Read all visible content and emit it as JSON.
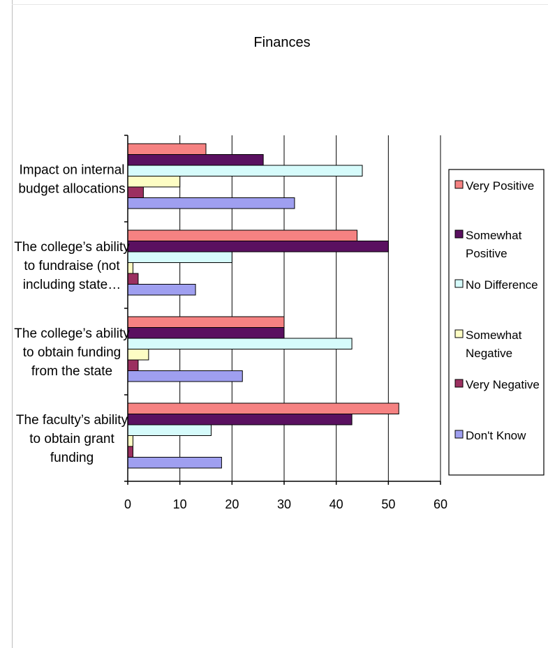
{
  "chart_data": {
    "type": "bar",
    "orientation": "horizontal",
    "title": "Finances",
    "xlabel": "",
    "ylabel": "",
    "xlim": [
      0,
      60
    ],
    "x_ticks": [
      0,
      10,
      20,
      30,
      40,
      50,
      60
    ],
    "grid": "vertical",
    "legend_position": "right",
    "categories": [
      "Impact on internal budget allocations",
      "The college’s ability to fundraise (not including state…",
      "The college’s ability to obtain funding from the state",
      "The faculty’s ability to obtain grant funding"
    ],
    "category_label_lines": [
      [
        "Impact on internal",
        "budget allocations"
      ],
      [
        "The college’s ability",
        "to fundraise (not",
        "including state…"
      ],
      [
        "The college’s ability",
        "to obtain funding",
        "from the state"
      ],
      [
        "The faculty’s ability",
        "to obtain grant",
        "funding"
      ]
    ],
    "series": [
      {
        "name": "Very Positive",
        "legend_lines": [
          "Very Positive"
        ],
        "color": "#f58282",
        "values": [
          15,
          44,
          30,
          52
        ]
      },
      {
        "name": "Somewhat Positive",
        "legend_lines": [
          "Somewhat",
          "Positive"
        ],
        "color": "#5a1060",
        "values": [
          26,
          50,
          30,
          43
        ]
      },
      {
        "name": "No Difference",
        "legend_lines": [
          "No Difference"
        ],
        "color": "#d6fbfb",
        "values": [
          45,
          20,
          43,
          16
        ]
      },
      {
        "name": "Somewhat Negative",
        "legend_lines": [
          "Somewhat",
          "Negative"
        ],
        "color": "#fdfdc4",
        "values": [
          10,
          1,
          4,
          1
        ]
      },
      {
        "name": "Very Negative",
        "legend_lines": [
          "Very Negative"
        ],
        "color": "#9b3060",
        "values": [
          3,
          2,
          2,
          1
        ]
      },
      {
        "name": "Don't Know",
        "legend_lines": [
          "Don't Know"
        ],
        "color": "#9f9ff0",
        "values": [
          32,
          13,
          22,
          18
        ]
      }
    ]
  }
}
